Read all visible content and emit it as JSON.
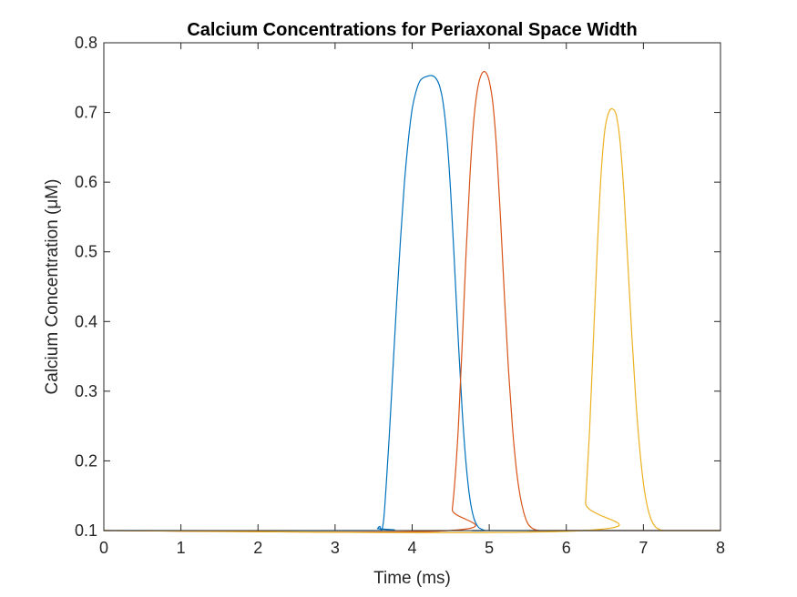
{
  "chart_data": {
    "type": "line",
    "title": "Calcium Concentrations for Periaxonal Space Width",
    "xlabel": "Time (ms)",
    "ylabel": "Calcium Concentration (μM)",
    "xlim": [
      0,
      8
    ],
    "ylim": [
      0.1,
      0.8
    ],
    "xticks": [
      "0",
      "1",
      "2",
      "3",
      "4",
      "5",
      "6",
      "7",
      "8"
    ],
    "yticks": [
      "0.1",
      "0.2",
      "0.3",
      "0.4",
      "0.5",
      "0.6",
      "0.7",
      "0.8"
    ],
    "grid": false,
    "legend": false,
    "series": [
      {
        "color": "#0072BD",
        "x": [
          0,
          3.5,
          3.55,
          3.58,
          3.6,
          3.63,
          3.66,
          3.7,
          3.75,
          3.8,
          3.85,
          3.9,
          3.95,
          4.0,
          4.05,
          4.1,
          4.15,
          4.2,
          4.25,
          4.3,
          4.35,
          4.4,
          4.45,
          4.5,
          4.55,
          4.6,
          4.65,
          4.7,
          4.75,
          4.8,
          4.85,
          4.9,
          4.95,
          5.0,
          8
        ],
        "y": [
          0.1,
          0.1,
          0.103,
          0.106,
          0.1,
          0.115,
          0.16,
          0.23,
          0.33,
          0.43,
          0.52,
          0.6,
          0.66,
          0.705,
          0.73,
          0.745,
          0.75,
          0.752,
          0.753,
          0.75,
          0.74,
          0.715,
          0.665,
          0.585,
          0.48,
          0.37,
          0.27,
          0.195,
          0.145,
          0.118,
          0.106,
          0.102,
          0.1,
          0.1,
          0.1
        ]
      },
      {
        "color": "#D95319",
        "x": [
          0,
          4.48,
          4.52,
          4.56,
          4.6,
          4.65,
          4.7,
          4.75,
          4.8,
          4.85,
          4.9,
          4.95,
          5.0,
          5.05,
          5.1,
          5.15,
          5.2,
          5.25,
          5.3,
          5.35,
          5.4,
          5.45,
          5.5,
          5.55,
          5.6,
          5.65,
          5.7,
          8
        ],
        "y": [
          0.1,
          0.1,
          0.13,
          0.18,
          0.25,
          0.37,
          0.5,
          0.61,
          0.69,
          0.735,
          0.755,
          0.758,
          0.745,
          0.71,
          0.64,
          0.54,
          0.43,
          0.33,
          0.25,
          0.19,
          0.15,
          0.125,
          0.11,
          0.104,
          0.101,
          0.1,
          0.1,
          0.1
        ]
      },
      {
        "color": "#EDB120",
        "x": [
          0,
          6.22,
          6.25,
          6.3,
          6.35,
          6.4,
          6.45,
          6.5,
          6.55,
          6.6,
          6.65,
          6.7,
          6.75,
          6.8,
          6.85,
          6.9,
          6.95,
          7.0,
          7.05,
          7.1,
          7.15,
          7.2,
          7.25,
          7.3,
          8
        ],
        "y": [
          0.1,
          0.1,
          0.14,
          0.24,
          0.37,
          0.5,
          0.61,
          0.675,
          0.7,
          0.705,
          0.695,
          0.655,
          0.58,
          0.48,
          0.38,
          0.29,
          0.22,
          0.168,
          0.135,
          0.116,
          0.106,
          0.102,
          0.1,
          0.1,
          0.1
        ]
      }
    ]
  }
}
